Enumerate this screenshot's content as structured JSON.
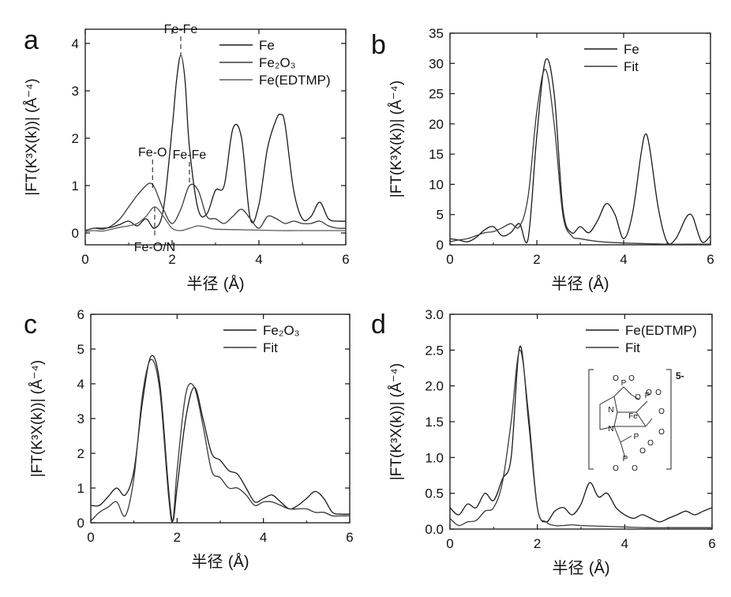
{
  "chart_data": [
    {
      "panel": "a",
      "type": "line",
      "xlabel_cjk": "半径",
      "xlabel_unit": "(Å)",
      "ylabel": "|FT(K³X(k))| (Å⁻⁴)",
      "xlim": [
        0,
        6
      ],
      "ylim": [
        -0.25,
        4.3
      ],
      "xticks": [
        "0",
        "2",
        "4",
        "6"
      ],
      "yticks": [
        "0",
        "1",
        "2",
        "3",
        "4"
      ],
      "ytick_values": [
        0,
        1,
        2,
        3,
        4
      ],
      "legend": [
        "Fe",
        "Fe₂O₃",
        "Fe(EDTMP)"
      ],
      "legend_position": "top-right",
      "annotations": [
        {
          "text": "Fe-Fe",
          "x": 2.2,
          "y": 3.75,
          "top": 4.15
        },
        {
          "text": "Fe-O",
          "x": 1.55,
          "y": 0.9,
          "top": 1.55
        },
        {
          "text": "Fe-Fe",
          "x": 2.4,
          "y": 1.0,
          "top": 1.5
        },
        {
          "text": "Fe-O/N",
          "x": 1.6,
          "y": 0.55,
          "top": -0.05
        }
      ],
      "series": [
        {
          "x": [
            0,
            0.2,
            0.4,
            0.6,
            0.8,
            1.0,
            1.2,
            1.4,
            1.6,
            1.8,
            2.0,
            2.1,
            2.2,
            2.3,
            2.4,
            2.6,
            2.8,
            3.0,
            3.2,
            3.4,
            3.6,
            3.8,
            4.0,
            4.2,
            4.4,
            4.5,
            4.6,
            4.8,
            5.0,
            5.2,
            5.4,
            5.6,
            5.8,
            6.0
          ],
          "y": [
            0.05,
            0.1,
            0.1,
            0.12,
            0.18,
            0.25,
            0.15,
            0.3,
            0.1,
            0.5,
            2.2,
            3.2,
            3.75,
            3.2,
            1.8,
            0.5,
            0.4,
            0.9,
            1.0,
            2.2,
            2.0,
            0.3,
            0.6,
            1.8,
            2.4,
            2.5,
            2.3,
            0.9,
            0.3,
            0.35,
            0.65,
            0.3,
            0.25,
            0.25
          ]
        },
        {
          "x": [
            0,
            0.2,
            0.4,
            0.6,
            0.8,
            1.0,
            1.2,
            1.4,
            1.5,
            1.6,
            1.8,
            2.0,
            2.2,
            2.4,
            2.6,
            2.8,
            3.0,
            3.2,
            3.4,
            3.6,
            3.8,
            4.0,
            4.2,
            4.4,
            4.6,
            4.8,
            5.0,
            5.2,
            5.4,
            5.6,
            5.8,
            6.0
          ],
          "y": [
            0.05,
            0.1,
            0.08,
            0.15,
            0.3,
            0.55,
            0.8,
            1.0,
            1.05,
            0.95,
            0.5,
            0.2,
            0.5,
            1.0,
            0.9,
            0.35,
            0.3,
            0.2,
            0.35,
            0.5,
            0.3,
            0.1,
            0.35,
            0.3,
            0.2,
            0.25,
            0.2,
            0.2,
            0.25,
            0.15,
            0.1,
            0.1
          ]
        },
        {
          "x": [
            0,
            0.2,
            0.4,
            0.6,
            0.8,
            1.0,
            1.2,
            1.4,
            1.6,
            1.8,
            2.0,
            2.2,
            2.4,
            2.6,
            2.8,
            3.0,
            3.5,
            4.0,
            4.5,
            5.0,
            5.5,
            6.0
          ],
          "y": [
            0.03,
            0.05,
            0.04,
            0.08,
            0.12,
            0.15,
            0.2,
            0.35,
            0.55,
            0.35,
            0.1,
            0.05,
            0.1,
            0.15,
            0.12,
            0.08,
            0.07,
            0.06,
            0.05,
            0.05,
            0.05,
            0.05
          ]
        }
      ]
    },
    {
      "panel": "b",
      "type": "line",
      "xlabel_cjk": "半径",
      "xlabel_unit": "(Å)",
      "ylabel": "|FT(K³X(k))| (Å⁻⁴)",
      "xlim": [
        0,
        6
      ],
      "ylim": [
        0,
        35
      ],
      "xticks": [
        "0",
        "2",
        "4",
        "6"
      ],
      "yticks": [
        "0",
        "5",
        "10",
        "15",
        "20",
        "25",
        "30",
        "35"
      ],
      "ytick_values": [
        0,
        5,
        10,
        15,
        20,
        25,
        30,
        35
      ],
      "legend": [
        "Fe",
        "Fit"
      ],
      "legend_position": "top-right",
      "series": [
        {
          "x": [
            0,
            0.2,
            0.4,
            0.6,
            0.8,
            1.0,
            1.2,
            1.4,
            1.6,
            1.8,
            2.0,
            2.2,
            2.4,
            2.6,
            2.8,
            3.0,
            3.2,
            3.4,
            3.6,
            3.8,
            4.0,
            4.2,
            4.4,
            4.5,
            4.6,
            4.8,
            5.0,
            5.2,
            5.4,
            5.5,
            5.6,
            5.8,
            6.0
          ],
          "y": [
            1,
            0.8,
            0.5,
            1.2,
            2.5,
            3.0,
            1.5,
            2.0,
            3.5,
            1.0,
            18,
            30.5,
            25,
            6,
            2,
            3,
            2,
            4,
            6.8,
            5,
            1,
            5,
            15,
            18.3,
            16,
            6,
            0.5,
            1,
            4,
            5,
            4.5,
            0.5,
            1.5
          ]
        },
        {
          "x": [
            0,
            0.2,
            0.4,
            0.6,
            0.8,
            1.0,
            1.2,
            1.4,
            1.6,
            1.8,
            2.0,
            2.2,
            2.4,
            2.6,
            2.8,
            3.0,
            3.5,
            4.0,
            4.5,
            5.0,
            5.5,
            6.0
          ],
          "y": [
            0.5,
            0.8,
            1.0,
            1.5,
            2.0,
            2.2,
            2.8,
            3.5,
            3.0,
            8,
            22,
            29,
            20,
            5,
            1.5,
            1.0,
            0.5,
            0.3,
            0.2,
            0.1,
            0.1,
            0.1
          ]
        }
      ]
    },
    {
      "panel": "c",
      "type": "line",
      "xlabel_cjk": "半径",
      "xlabel_unit": "(Å)",
      "ylabel": "|FT(K³X(k))| (Å⁻⁴)",
      "xlim": [
        0,
        6
      ],
      "ylim": [
        0,
        6
      ],
      "xticks": [
        "0",
        "2",
        "4",
        "6"
      ],
      "yticks": [
        "0",
        "1",
        "2",
        "3",
        "4",
        "5",
        "6"
      ],
      "ytick_values": [
        0,
        1,
        2,
        3,
        4,
        5,
        6
      ],
      "legend": [
        "Fe₂O₃",
        "Fit"
      ],
      "legend_position": "top-right",
      "series": [
        {
          "x": [
            0,
            0.2,
            0.4,
            0.6,
            0.8,
            1.0,
            1.2,
            1.4,
            1.6,
            1.8,
            1.9,
            2.0,
            2.2,
            2.4,
            2.6,
            2.8,
            3.0,
            3.2,
            3.4,
            3.6,
            3.8,
            4.0,
            4.2,
            4.4,
            4.6,
            4.8,
            5.0,
            5.2,
            5.4,
            5.6,
            5.8,
            6.0
          ],
          "y": [
            0.5,
            0.5,
            0.75,
            1.0,
            0.8,
            1.5,
            3.5,
            4.8,
            4.0,
            1.0,
            0.05,
            1.0,
            3.0,
            3.9,
            3.0,
            2.0,
            1.8,
            1.5,
            1.4,
            1.0,
            0.6,
            0.7,
            0.8,
            0.6,
            0.4,
            0.5,
            0.7,
            0.9,
            0.7,
            0.3,
            0.25,
            0.25
          ]
        },
        {
          "x": [
            0,
            0.2,
            0.4,
            0.6,
            0.8,
            1.0,
            1.2,
            1.4,
            1.6,
            1.8,
            1.9,
            2.0,
            2.2,
            2.4,
            2.6,
            2.8,
            3.0,
            3.2,
            3.4,
            3.6,
            3.8,
            4.0,
            4.2,
            4.4,
            4.6,
            4.8,
            5.0,
            5.2,
            5.4,
            5.6,
            5.8,
            6.0
          ],
          "y": [
            0.05,
            0.3,
            0.45,
            0.6,
            0.2,
            1.3,
            3.7,
            4.7,
            3.8,
            0.8,
            0.05,
            1.5,
            3.7,
            3.9,
            2.8,
            1.5,
            1.3,
            1.0,
            1.0,
            0.8,
            0.5,
            0.6,
            0.6,
            0.5,
            0.4,
            0.4,
            0.4,
            0.3,
            0.3,
            0.2,
            0.2,
            0.2
          ]
        }
      ]
    },
    {
      "panel": "d",
      "type": "line",
      "xlabel_cjk": "半径",
      "xlabel_unit": "(Å)",
      "ylabel": "|FT(K³X(k))| (Å⁻⁴)",
      "xlim": [
        0,
        6
      ],
      "ylim": [
        0,
        3.0
      ],
      "xticks": [
        "0",
        "2",
        "4",
        "6"
      ],
      "yticks": [
        "0.0",
        "0.5",
        "1.0",
        "1.5",
        "2.0",
        "2.5",
        "3.0"
      ],
      "ytick_values": [
        0,
        0.5,
        1.0,
        1.5,
        2.0,
        2.5,
        3.0
      ],
      "legend": [
        "Fe(EDTMP)",
        "Fit"
      ],
      "legend_position": "top-right",
      "inset_text": [
        "P",
        "O",
        "N",
        "Fe",
        "5-"
      ],
      "series": [
        {
          "x": [
            0,
            0.2,
            0.4,
            0.6,
            0.8,
            1.0,
            1.2,
            1.4,
            1.6,
            1.8,
            2.0,
            2.2,
            2.4,
            2.6,
            2.8,
            3.0,
            3.2,
            3.4,
            3.6,
            3.8,
            4.0,
            4.2,
            4.4,
            4.6,
            4.8,
            5.0,
            5.2,
            5.4,
            5.6,
            5.8,
            6.0
          ],
          "y": [
            0.3,
            0.2,
            0.35,
            0.3,
            0.5,
            0.4,
            0.7,
            1.0,
            2.55,
            1.5,
            0.3,
            0.1,
            0.25,
            0.3,
            0.2,
            0.35,
            0.65,
            0.45,
            0.5,
            0.3,
            0.2,
            0.15,
            0.2,
            0.15,
            0.1,
            0.15,
            0.2,
            0.25,
            0.2,
            0.25,
            0.3
          ]
        },
        {
          "x": [
            0,
            0.2,
            0.4,
            0.6,
            0.8,
            1.0,
            1.2,
            1.4,
            1.6,
            1.8,
            2.0,
            2.2,
            2.4,
            2.6,
            2.8,
            3.0,
            3.5,
            4.0,
            4.5,
            5.0,
            5.5,
            6.0
          ],
          "y": [
            0.15,
            0.05,
            0.1,
            0.12,
            0.25,
            0.3,
            0.65,
            1.5,
            2.5,
            1.6,
            0.3,
            0.1,
            0.05,
            0.05,
            0.06,
            0.05,
            0.04,
            0.03,
            0.02,
            0.02,
            0.02,
            0.02
          ]
        }
      ]
    }
  ],
  "panel_letters": [
    "a",
    "b",
    "c",
    "d"
  ]
}
